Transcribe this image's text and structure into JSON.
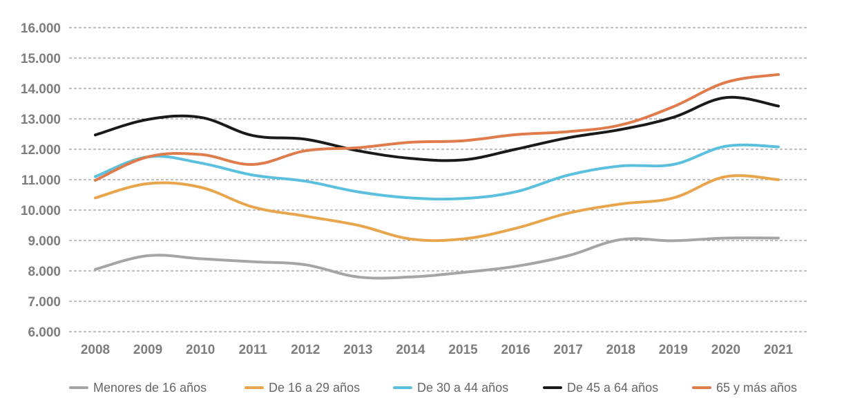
{
  "chart_data": {
    "type": "line",
    "title": "",
    "xlabel": "",
    "ylabel": "",
    "categories": [
      "2008",
      "2009",
      "2010",
      "2011",
      "2012",
      "2013",
      "2014",
      "2015",
      "2016",
      "2017",
      "2018",
      "2019",
      "2020",
      "2021"
    ],
    "ylim": [
      6000,
      16000
    ],
    "yticks": [
      {
        "value": 6000,
        "label": "6.000"
      },
      {
        "value": 7000,
        "label": "7.000"
      },
      {
        "value": 8000,
        "label": "8.000"
      },
      {
        "value": 9000,
        "label": "9.000"
      },
      {
        "value": 10000,
        "label": "10.000"
      },
      {
        "value": 11000,
        "label": "11.000"
      },
      {
        "value": 12000,
        "label": "12.000"
      },
      {
        "value": 13000,
        "label": "13.000"
      },
      {
        "value": 14000,
        "label": "14.000"
      },
      {
        "value": 15000,
        "label": "15.000"
      },
      {
        "value": 16000,
        "label": "16.000"
      }
    ],
    "grid": true,
    "legend_position": "bottom",
    "series": [
      {
        "name": "Menores de 16 años",
        "color": "#a5a5a5",
        "values": [
          8050,
          8500,
          8400,
          8300,
          8200,
          7800,
          7800,
          7950,
          8150,
          8500,
          9030,
          8990,
          9080,
          9080
        ]
      },
      {
        "name": "De 16 a 29 años",
        "color": "#e9a54c",
        "values": [
          10400,
          10870,
          10750,
          10100,
          9800,
          9500,
          9050,
          9050,
          9400,
          9900,
          10200,
          10400,
          11100,
          11000
        ]
      },
      {
        "name": "De 30 a 44 años",
        "color": "#5bc0de",
        "values": [
          11100,
          11750,
          11550,
          11150,
          10950,
          10600,
          10400,
          10380,
          10600,
          11150,
          11450,
          11500,
          12100,
          12080
        ]
      },
      {
        "name": "De 45 a 64 años",
        "color": "#1a1a1a",
        "values": [
          12470,
          12980,
          13050,
          12450,
          12330,
          11950,
          11700,
          11650,
          12000,
          12380,
          12650,
          13050,
          13700,
          13420
        ]
      },
      {
        "name": "65 y más años",
        "color": "#e07b4c",
        "values": [
          10980,
          11750,
          11830,
          11500,
          11950,
          12050,
          12230,
          12280,
          12480,
          12580,
          12800,
          13400,
          14200,
          14460
        ]
      }
    ]
  }
}
